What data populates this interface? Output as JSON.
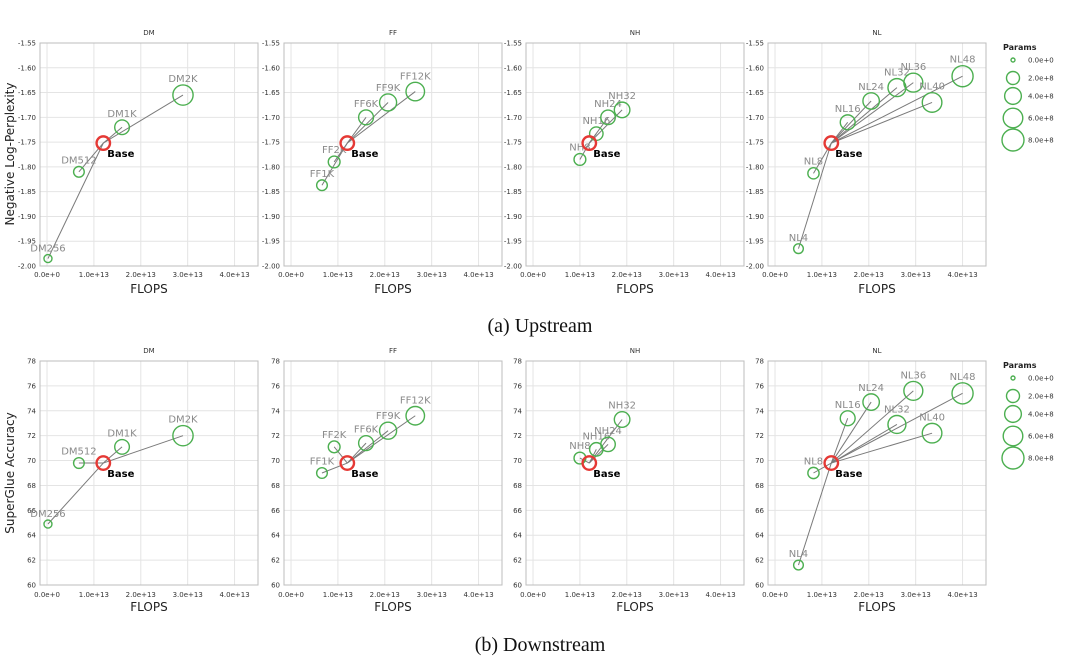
{
  "x_label": "FLOPS",
  "x_ticks": [
    "0.0e+0",
    "1.0e+13",
    "2.0e+13",
    "3.0e+13",
    "4.0e+13"
  ],
  "x_tick_values": [
    0,
    10000000000000.0,
    20000000000000.0,
    30000000000000.0,
    40000000000000.0
  ],
  "colors": {
    "base": "#e53935",
    "variant": "#4caf50",
    "line": "#7a7a7a"
  },
  "legend": {
    "title": "Params",
    "entries": [
      {
        "label": "0.0e+0",
        "value": 0
      },
      {
        "label": "2.0e+8",
        "value": 200000000
      },
      {
        "label": "4.0e+8",
        "value": 400000000
      },
      {
        "label": "6.0e+8",
        "value": 600000000
      },
      {
        "label": "8.0e+8",
        "value": 800000000
      }
    ]
  },
  "chart_data": [
    {
      "type": "scatter",
      "caption": "(a) Upstream",
      "ylabel": "Negative Log-Perplexity",
      "ylim": [
        -2.0,
        -1.55
      ],
      "y_ticks": [
        "-2.00",
        "-1.95",
        "-1.90",
        "-1.85",
        "-1.80",
        "-1.75",
        "-1.70",
        "-1.65",
        "-1.60",
        "-1.55"
      ],
      "y_tick_values": [
        -2.0,
        -1.95,
        -1.9,
        -1.85,
        -1.8,
        -1.75,
        -1.7,
        -1.65,
        -1.6,
        -1.55
      ],
      "xlim": [
        -1500000000000.0,
        45000000000000.0
      ],
      "base": {
        "label": "Base",
        "x": 12000000000000.0,
        "y": -1.752,
        "params": 220000000
      },
      "facets": [
        {
          "title": "DM",
          "points": [
            {
              "label": "DM256",
              "x": 200000000000.0,
              "y": -1.985,
              "params": 40000000
            },
            {
              "label": "DM512",
              "x": 6800000000000.0,
              "y": -1.81,
              "params": 110000000
            },
            {
              "label": "DM1K",
              "x": 16000000000000.0,
              "y": -1.72,
              "params": 280000000
            },
            {
              "label": "DM2K",
              "x": 29000000000000.0,
              "y": -1.655,
              "params": 650000000
            }
          ]
        },
        {
          "title": "FF",
          "points": [
            {
              "label": "FF1K",
              "x": 6600000000000.0,
              "y": -1.837,
              "params": 110000000
            },
            {
              "label": "FF2K",
              "x": 9200000000000.0,
              "y": -1.79,
              "params": 150000000
            },
            {
              "label": "FF6K",
              "x": 16000000000000.0,
              "y": -1.7,
              "params": 290000000
            },
            {
              "label": "FF9K",
              "x": 20700000000000.0,
              "y": -1.67,
              "params": 420000000
            },
            {
              "label": "FF12K",
              "x": 26500000000000.0,
              "y": -1.648,
              "params": 520000000
            }
          ]
        },
        {
          "title": "NH",
          "points": [
            {
              "label": "NH8",
              "x": 10000000000000.0,
              "y": -1.785,
              "params": 150000000
            },
            {
              "label": "NH16",
              "x": 13500000000000.0,
              "y": -1.733,
              "params": 220000000
            },
            {
              "label": "NH24",
              "x": 16000000000000.0,
              "y": -1.7,
              "params": 270000000
            },
            {
              "label": "NH32",
              "x": 19000000000000.0,
              "y": -1.685,
              "params": 330000000
            }
          ]
        },
        {
          "title": "NL",
          "points": [
            {
              "label": "NL4",
              "x": 5000000000000.0,
              "y": -1.965,
              "params": 80000000
            },
            {
              "label": "NL8",
              "x": 8200000000000.0,
              "y": -1.813,
              "params": 130000000
            },
            {
              "label": "NL16",
              "x": 15500000000000.0,
              "y": -1.71,
              "params": 290000000
            },
            {
              "label": "NL24",
              "x": 20500000000000.0,
              "y": -1.667,
              "params": 380000000
            },
            {
              "label": "NL32",
              "x": 26000000000000.0,
              "y": -1.64,
              "params": 480000000
            },
            {
              "label": "NL36",
              "x": 29500000000000.0,
              "y": -1.63,
              "params": 550000000
            },
            {
              "label": "NL40",
              "x": 33500000000000.0,
              "y": -1.67,
              "params": 600000000
            },
            {
              "label": "NL48",
              "x": 40000000000000.0,
              "y": -1.617,
              "params": 720000000
            }
          ]
        }
      ]
    },
    {
      "type": "scatter",
      "caption": "(b) Downstream",
      "ylabel": "SuperGlue Accuracy",
      "ylim": [
        60,
        78
      ],
      "y_ticks": [
        "60",
        "62",
        "64",
        "66",
        "68",
        "70",
        "72",
        "74",
        "76",
        "78"
      ],
      "y_tick_values": [
        60,
        62,
        64,
        66,
        68,
        70,
        72,
        74,
        76,
        78
      ],
      "xlim": [
        -1500000000000.0,
        45000000000000.0
      ],
      "base": {
        "label": "Base",
        "x": 12000000000000.0,
        "y": 69.8,
        "params": 220000000
      },
      "facets": [
        {
          "title": "DM",
          "points": [
            {
              "label": "DM256",
              "x": 200000000000.0,
              "y": 64.9,
              "params": 40000000
            },
            {
              "label": "DM512",
              "x": 6800000000000.0,
              "y": 69.8,
              "params": 110000000
            },
            {
              "label": "DM1K",
              "x": 16000000000000.0,
              "y": 71.1,
              "params": 280000000
            },
            {
              "label": "DM2K",
              "x": 29000000000000.0,
              "y": 72.0,
              "params": 650000000
            }
          ]
        },
        {
          "title": "FF",
          "points": [
            {
              "label": "FF1K",
              "x": 6600000000000.0,
              "y": 69.0,
              "params": 110000000
            },
            {
              "label": "FF2K",
              "x": 9200000000000.0,
              "y": 71.1,
              "params": 150000000
            },
            {
              "label": "FF6K",
              "x": 16000000000000.0,
              "y": 71.4,
              "params": 290000000
            },
            {
              "label": "FF9K",
              "x": 20700000000000.0,
              "y": 72.4,
              "params": 420000000
            },
            {
              "label": "FF12K",
              "x": 26500000000000.0,
              "y": 73.6,
              "params": 520000000
            }
          ]
        },
        {
          "title": "NH",
          "points": [
            {
              "label": "NH8",
              "x": 10000000000000.0,
              "y": 70.2,
              "params": 150000000
            },
            {
              "label": "NH16",
              "x": 13500000000000.0,
              "y": 70.9,
              "params": 220000000
            },
            {
              "label": "NH24",
              "x": 16000000000000.0,
              "y": 71.3,
              "params": 270000000
            },
            {
              "label": "NH32",
              "x": 19000000000000.0,
              "y": 73.3,
              "params": 330000000
            }
          ]
        },
        {
          "title": "NL",
          "points": [
            {
              "label": "NL4",
              "x": 5000000000000.0,
              "y": 61.6,
              "params": 80000000
            },
            {
              "label": "NL8",
              "x": 8200000000000.0,
              "y": 69.0,
              "params": 130000000
            },
            {
              "label": "NL16",
              "x": 15500000000000.0,
              "y": 73.4,
              "params": 290000000
            },
            {
              "label": "NL24",
              "x": 20500000000000.0,
              "y": 74.7,
              "params": 380000000
            },
            {
              "label": "NL32",
              "x": 26000000000000.0,
              "y": 72.9,
              "params": 480000000
            },
            {
              "label": "NL36",
              "x": 29500000000000.0,
              "y": 75.6,
              "params": 550000000
            },
            {
              "label": "NL40",
              "x": 33500000000000.0,
              "y": 72.2,
              "params": 600000000
            },
            {
              "label": "NL48",
              "x": 40000000000000.0,
              "y": 75.4,
              "params": 720000000
            }
          ]
        }
      ]
    }
  ]
}
